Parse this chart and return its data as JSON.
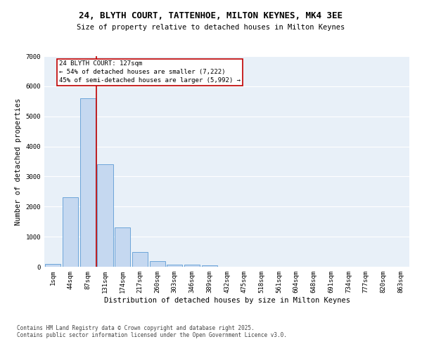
{
  "title": "24, BLYTH COURT, TATTENHOE, MILTON KEYNES, MK4 3EE",
  "subtitle": "Size of property relative to detached houses in Milton Keynes",
  "xlabel": "Distribution of detached houses by size in Milton Keynes",
  "ylabel": "Number of detached properties",
  "bar_color": "#c5d8f0",
  "bar_edge_color": "#5b9bd5",
  "background_color": "#e8f0f8",
  "categories": [
    "1sqm",
    "44sqm",
    "87sqm",
    "131sqm",
    "174sqm",
    "217sqm",
    "260sqm",
    "303sqm",
    "346sqm",
    "389sqm",
    "432sqm",
    "475sqm",
    "518sqm",
    "561sqm",
    "604sqm",
    "648sqm",
    "691sqm",
    "734sqm",
    "777sqm",
    "820sqm",
    "863sqm"
  ],
  "values": [
    100,
    2300,
    5600,
    3400,
    1300,
    500,
    180,
    80,
    60,
    40,
    0,
    0,
    0,
    0,
    0,
    0,
    0,
    0,
    0,
    0,
    0
  ],
  "ylim": [
    0,
    7000
  ],
  "yticks": [
    0,
    1000,
    2000,
    3000,
    4000,
    5000,
    6000,
    7000
  ],
  "vline_color": "#c00000",
  "annotation_text": "24 BLYTH COURT: 127sqm\n← 54% of detached houses are smaller (7,222)\n45% of semi-detached houses are larger (5,992) →",
  "annotation_box_color": "#c00000",
  "footer_text": "Contains HM Land Registry data © Crown copyright and database right 2025.\nContains public sector information licensed under the Open Government Licence v3.0.",
  "title_fontsize": 9,
  "subtitle_fontsize": 7.5,
  "xlabel_fontsize": 7.5,
  "ylabel_fontsize": 7.5,
  "tick_fontsize": 6.5,
  "annotation_fontsize": 6.5,
  "footer_fontsize": 5.5
}
